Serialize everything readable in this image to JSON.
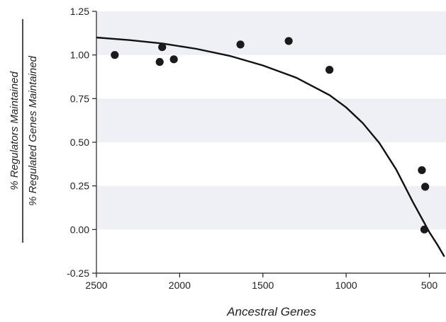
{
  "chart_data": {
    "type": "scatter",
    "xlabel": "Ancestral Genes",
    "ylabel": {
      "numerator": "% Regulators Maintained",
      "denominator": "% Regulated Genes Maintained"
    },
    "xlim": [
      2500,
      400
    ],
    "x_reversed": true,
    "ylim": [
      -0.25,
      1.25
    ],
    "xticks": [
      2500,
      2000,
      1500,
      1000,
      500
    ],
    "yticks": [
      -0.25,
      0.0,
      0.25,
      0.5,
      0.75,
      1.0,
      1.25
    ],
    "ytick_labels": [
      "-0.25",
      "0.00",
      "0.25",
      "0.50",
      "0.75",
      "1.00",
      "1.25"
    ],
    "grid": "alternating horizontal bands",
    "colors": {
      "band": "#eef0f6",
      "points": "#1a1a1a",
      "curve": "#111111",
      "axis": "#222222"
    },
    "points": [
      {
        "x": 2390,
        "y": 1.0
      },
      {
        "x": 2120,
        "y": 0.96
      },
      {
        "x": 2105,
        "y": 1.045
      },
      {
        "x": 2035,
        "y": 0.975
      },
      {
        "x": 1635,
        "y": 1.06
      },
      {
        "x": 1345,
        "y": 1.08
      },
      {
        "x": 1100,
        "y": 0.915
      },
      {
        "x": 545,
        "y": 0.34
      },
      {
        "x": 525,
        "y": 0.245
      },
      {
        "x": 530,
        "y": 0.0
      }
    ],
    "fit_curve": [
      {
        "x": 2500,
        "y": 1.1
      },
      {
        "x": 2300,
        "y": 1.085
      },
      {
        "x": 2100,
        "y": 1.065
      },
      {
        "x": 1900,
        "y": 1.035
      },
      {
        "x": 1700,
        "y": 0.995
      },
      {
        "x": 1500,
        "y": 0.94
      },
      {
        "x": 1300,
        "y": 0.87
      },
      {
        "x": 1100,
        "y": 0.77
      },
      {
        "x": 1000,
        "y": 0.7
      },
      {
        "x": 900,
        "y": 0.61
      },
      {
        "x": 800,
        "y": 0.495
      },
      {
        "x": 700,
        "y": 0.345
      },
      {
        "x": 600,
        "y": 0.16
      },
      {
        "x": 500,
        "y": -0.015
      },
      {
        "x": 450,
        "y": -0.09
      },
      {
        "x": 410,
        "y": -0.155
      }
    ]
  }
}
